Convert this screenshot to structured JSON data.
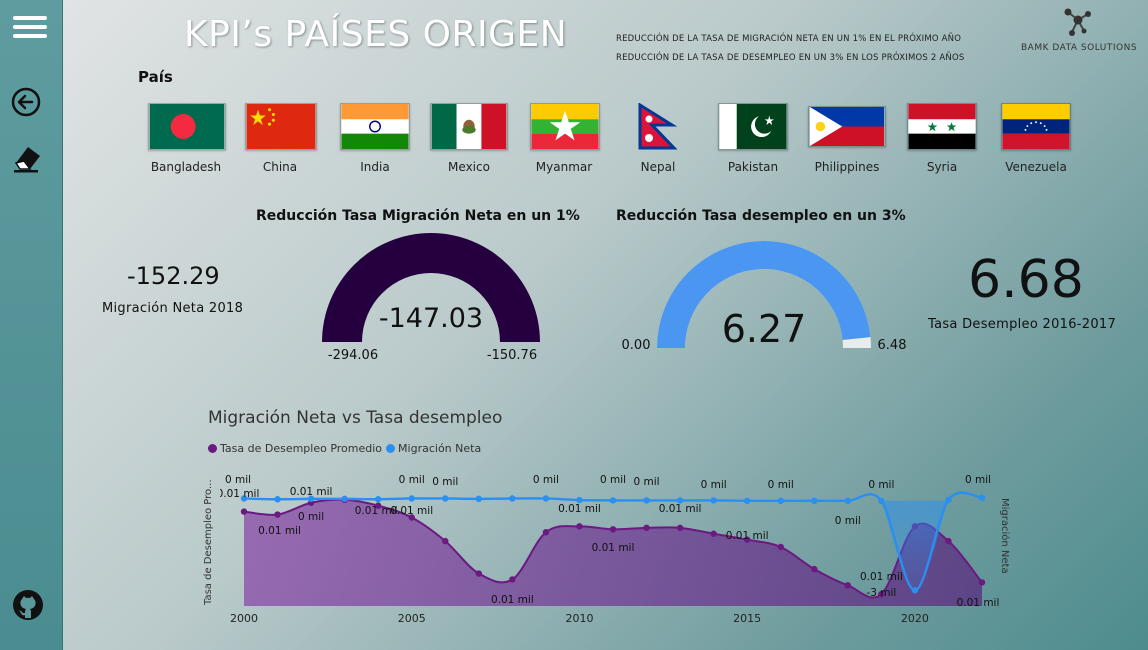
{
  "header": {
    "title": "KPI’s PAÍSES ORIGEN",
    "goal_1": "REDUCCIÓN DE LA TASA DE MIGRACIÓN NETA EN UN 1% EN EL PRÓXIMO AÑO",
    "goal_2": "REDUCCIÓN DE LA TASA DE DESEMPLEO EN UN 3% EN LOS PRÓXIMOS 2 AÑOS",
    "logo_text": "BAMK DATA SOLUTIONS"
  },
  "sidebar": {
    "icons": [
      "hamburger-menu-icon",
      "back-arrow-icon",
      "eraser-icon",
      "github-icon"
    ]
  },
  "filter": {
    "label": "País",
    "countries": [
      "Bangladesh",
      "China",
      "India",
      "Mexico",
      "Myanmar",
      "Nepal",
      "Pakistan",
      "Philippines",
      "Syria",
      "Venezuela"
    ]
  },
  "kpi_migration": {
    "value": "-152.29",
    "label": "Migración Neta 2018"
  },
  "gauge_migration": {
    "title": "Reducción Tasa Migración Neta en un 1%",
    "value": "-147.03",
    "min": "-294.06",
    "max": "-150.76",
    "fill_fraction": 1.0,
    "color": "#24003f"
  },
  "gauge_unemployment": {
    "title": "Reducción Tasa desempleo en un 3%",
    "value": "6.27",
    "min": "0.00",
    "max": "6.48",
    "fill_fraction": 0.9676,
    "color": "#4a96f0"
  },
  "kpi_unemployment": {
    "value": "6.68",
    "label": "Tasa Desempleo 2016-2017"
  },
  "chart": {
    "title": "Migración Neta vs Tasa desempleo",
    "left_axis_label": "Tasa de Desempleo Pro...",
    "right_axis_label": "Migración Neta"
  },
  "chart_data": {
    "type": "line",
    "x": [
      2000,
      2001,
      2002,
      2003,
      2004,
      2005,
      2006,
      2007,
      2008,
      2009,
      2010,
      2011,
      2012,
      2013,
      2014,
      2015,
      2016,
      2017,
      2018,
      2019,
      2020,
      2021,
      2022
    ],
    "xticks": [
      2000,
      2005,
      2010,
      2015,
      2020
    ],
    "series": [
      {
        "name": "Tasa de Desempleo Promedio",
        "color": "#6a1a80",
        "area": true,
        "values": [
          5.4,
          5.3,
          5.7,
          5.8,
          5.6,
          5.2,
          4.4,
          3.3,
          3.1,
          4.7,
          4.9,
          4.8,
          4.85,
          4.85,
          4.65,
          4.45,
          4.2,
          3.45,
          2.9,
          2.6,
          4.9,
          4.4,
          3.0
        ]
      },
      {
        "name": "Migración Neta",
        "color": "#2a8ff0",
        "values": [
          -0.1,
          -0.2,
          -0.15,
          -0.15,
          -0.2,
          -0.1,
          -0.1,
          -0.15,
          -0.1,
          -0.1,
          -0.3,
          -0.35,
          -0.35,
          -0.35,
          -0.35,
          -0.4,
          -0.4,
          -0.4,
          -0.4,
          -0.4,
          -12,
          -0.3,
          0.0
        ]
      }
    ],
    "data_labels": [
      {
        "x": 2000,
        "text": "0 mil"
      },
      {
        "x": 2000,
        "text": "0.01 mil"
      },
      {
        "x": 2001,
        "text": "0.01 mil"
      },
      {
        "x": 2002,
        "text": "0.01 mil"
      },
      {
        "x": 2002,
        "text": "0 mil"
      },
      {
        "x": 2004,
        "text": "0.01 mil"
      },
      {
        "x": 2005,
        "text": "0 mil"
      },
      {
        "x": 2005,
        "text": "0.01 mil"
      },
      {
        "x": 2006,
        "text": "0 mil"
      },
      {
        "x": 2008,
        "text": "0.01 mil"
      },
      {
        "x": 2009,
        "text": "0 mil"
      },
      {
        "x": 2010,
        "text": "0.01 mil"
      },
      {
        "x": 2011,
        "text": "0 mil"
      },
      {
        "x": 2011,
        "text": "0.01 mil"
      },
      {
        "x": 2012,
        "text": "0 mil"
      },
      {
        "x": 2013,
        "text": "0.01 mil"
      },
      {
        "x": 2014,
        "text": "0 mil"
      },
      {
        "x": 2015,
        "text": "0.01 mil"
      },
      {
        "x": 2016,
        "text": "0 mil"
      },
      {
        "x": 2018,
        "text": "0 mil"
      },
      {
        "x": 2019,
        "text": "0 mil"
      },
      {
        "x": 2019,
        "text": "0.01 mil"
      },
      {
        "x": 2019,
        "text": "-3 mil"
      },
      {
        "x": 2022,
        "text": "0 mil"
      },
      {
        "x": 2022,
        "text": "0.01 mil"
      }
    ]
  }
}
